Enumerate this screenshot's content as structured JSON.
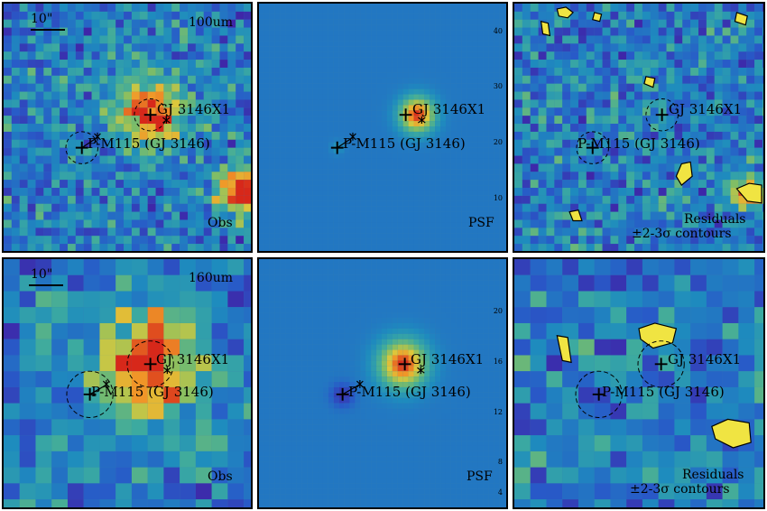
{
  "rows": [
    {
      "band": "100um",
      "scale": "10\"",
      "panels": [
        {
          "kind": "obs",
          "label": "Obs"
        },
        {
          "kind": "psf",
          "label": "PSF",
          "yticks": [
            "40",
            "30",
            "20",
            "10"
          ]
        },
        {
          "kind": "res",
          "label": "Residuals",
          "label2": "±2-3σ contours"
        }
      ]
    },
    {
      "band": "160um",
      "scale": "10\"",
      "panels": [
        {
          "kind": "obs",
          "label": "Obs"
        },
        {
          "kind": "psf",
          "label": "PSF",
          "yticks": [
            "20",
            "16",
            "12",
            "8",
            "4"
          ]
        },
        {
          "kind": "res",
          "label": "Residuals",
          "label2": "±2-3σ contours"
        }
      ]
    }
  ],
  "sources": {
    "s1": "GJ 3146X1",
    "s2": "P-M115 (GJ 3146)"
  },
  "colors": {
    "background": "#3d7fae",
    "peak": "#d62a1a",
    "contour": "#000000"
  }
}
